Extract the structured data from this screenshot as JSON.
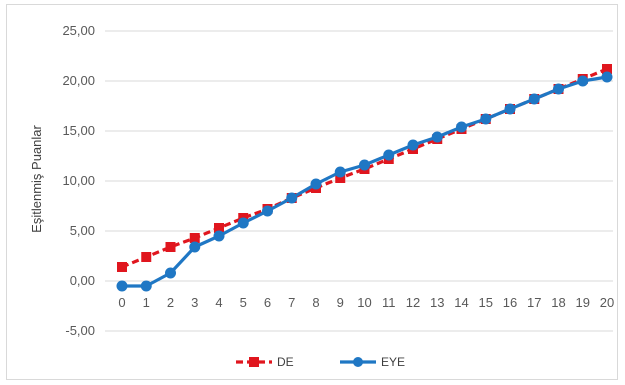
{
  "chart_data": {
    "type": "line",
    "title": "",
    "xlabel": "",
    "ylabel": "Eşitlenmiş Puanlar",
    "x": [
      0,
      1,
      2,
      3,
      4,
      5,
      6,
      7,
      8,
      9,
      10,
      11,
      12,
      13,
      14,
      15,
      16,
      17,
      18,
      19,
      20
    ],
    "y_ticks": [
      "-5,00",
      "0,00",
      "5,00",
      "10,00",
      "15,00",
      "20,00",
      "25,00"
    ],
    "ylim": [
      -5,
      25
    ],
    "xlim": [
      0,
      20
    ],
    "grid": "horizontal",
    "legend": "bottom",
    "series": [
      {
        "name": "DE",
        "style": "dashed",
        "marker": "square",
        "color": "#e0161e",
        "values": [
          1.4,
          2.4,
          3.4,
          4.3,
          5.3,
          6.3,
          7.2,
          8.3,
          9.3,
          10.3,
          11.2,
          12.2,
          13.2,
          14.2,
          15.2,
          16.2,
          17.2,
          18.2,
          19.2,
          20.2,
          21.2
        ]
      },
      {
        "name": "EYE",
        "style": "solid",
        "marker": "circle",
        "color": "#1f77c4",
        "values": [
          -0.5,
          -0.5,
          0.8,
          3.4,
          4.5,
          5.8,
          7.0,
          8.3,
          9.7,
          10.9,
          11.6,
          12.6,
          13.6,
          14.4,
          15.4,
          16.2,
          17.2,
          18.2,
          19.2,
          20.0,
          20.4
        ]
      }
    ]
  }
}
